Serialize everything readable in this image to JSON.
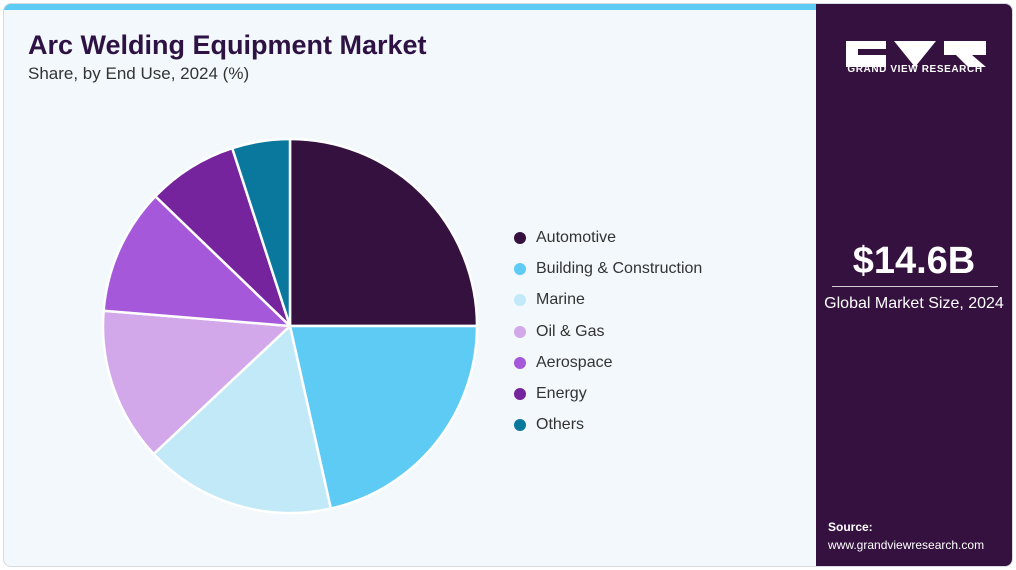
{
  "header": {
    "title": "Arc Welding Equipment Market",
    "subtitle": "Share, by End Use, 2024 (%)"
  },
  "sidebar": {
    "brand": "GRAND VIEW RESEARCH",
    "market_value": "$14.6B",
    "market_value_label": "Global Market Size, 2024",
    "source_label": "Source:",
    "source_url": "www.grandviewresearch.com"
  },
  "colors": {
    "accent": "#5ecbf5",
    "sidebar_bg": "#35113f",
    "card_bg": "#f2f8fb"
  },
  "chart_data": {
    "type": "pie",
    "title": "Arc Welding Equipment Market",
    "subtitle": "Share, by End Use, 2024 (%)",
    "legend_position": "right",
    "slices": [
      {
        "label": "Automotive",
        "value": 25.0,
        "color": "#35113f"
      },
      {
        "label": "Building & Construction",
        "value": 21.5,
        "color": "#5ecbf5"
      },
      {
        "label": "Marine",
        "value": 16.5,
        "color": "#c1e9f8"
      },
      {
        "label": "Oil & Gas",
        "value": 13.3,
        "color": "#d3a8ea"
      },
      {
        "label": "Aerospace",
        "value": 10.9,
        "color": "#a558d9"
      },
      {
        "label": "Energy",
        "value": 7.8,
        "color": "#75249e"
      },
      {
        "label": "Others",
        "value": 5.0,
        "color": "#0a789c"
      }
    ]
  }
}
